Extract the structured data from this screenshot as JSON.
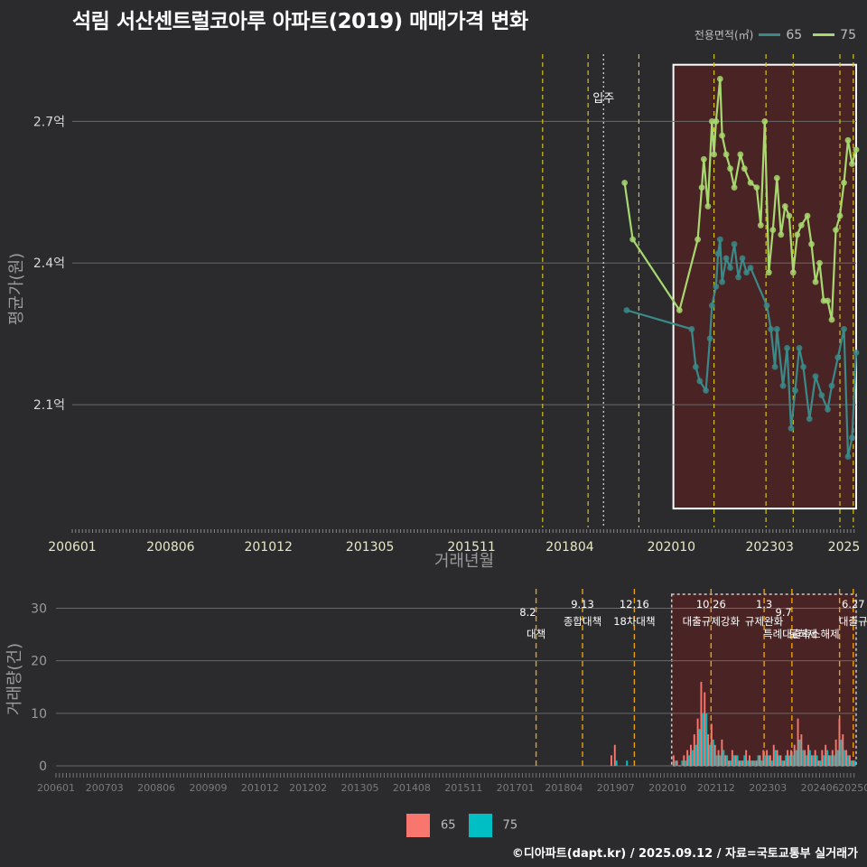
{
  "title": "석림 서산센트럴코아루 아파트(2019) 매매가격 변화",
  "footer": "©디아파트(dapt.kr) / 2025.09.12 / 자료=국토교통부 실거래가",
  "colors": {
    "s65_line": "#3a8a8a",
    "s75_line": "#a8d870",
    "bar65": "#f8766d",
    "bar75": "#00bfc4",
    "grid": "#6a6a6a",
    "highlight_fill": "#4a2424",
    "policy_line": "#d4c21a",
    "policy_line_bottom": "#e8a010"
  },
  "legend_top": {
    "title": "전용면적(㎡)",
    "items": [
      {
        "name": "65",
        "color": "#3a8a8a"
      },
      {
        "name": "75",
        "color": "#a8d870"
      }
    ]
  },
  "legend_bottom": {
    "items": [
      {
        "name": "65",
        "color": "#f8766d"
      },
      {
        "name": "75",
        "color": "#00bfc4"
      }
    ]
  },
  "chart_data": [
    {
      "type": "line",
      "title": "석림 서산센트럴코아루 아파트(2019) 매매가격 변화",
      "xlabel": "거래년월",
      "ylabel": "평균가(원)",
      "ylim": [
        1.84,
        2.85
      ],
      "xlim": [
        2006.0,
        2025.3
      ],
      "y_ticks": [
        {
          "v": 2.1,
          "label": "2.1억"
        },
        {
          "v": 2.4,
          "label": "2.4억"
        },
        {
          "v": 2.7,
          "label": "2.7억"
        }
      ],
      "x_ticks": [
        {
          "v": 2006.0,
          "label": "200601"
        },
        {
          "v": 2008.42,
          "label": "200806"
        },
        {
          "v": 2010.83,
          "label": "201012"
        },
        {
          "v": 2013.33,
          "label": "201305"
        },
        {
          "v": 2015.83,
          "label": "201511"
        },
        {
          "v": 2018.25,
          "label": "201804"
        },
        {
          "v": 2020.75,
          "label": "202010"
        },
        {
          "v": 2023.17,
          "label": "202303"
        },
        {
          "v": 2025.0,
          "label": "2025"
        }
      ],
      "annotations": [
        {
          "x": 2018.6,
          "label": "입주"
        }
      ],
      "policy_lines": [
        2017.58,
        2018.7,
        2019.95,
        2021.8,
        2023.08,
        2023.75,
        2024.9,
        2025.23
      ],
      "move_in_line": 2019.08,
      "highlight": {
        "x0": 2020.8,
        "x1": 2025.3,
        "y0": 1.88,
        "y1": 2.82
      },
      "series": [
        {
          "name": "65",
          "x": [
            2019.65,
            2021.25,
            2021.35,
            2021.45,
            2021.6,
            2021.7,
            2021.75,
            2021.85,
            2021.9,
            2021.95,
            2022.0,
            2022.1,
            2022.2,
            2022.3,
            2022.4,
            2022.5,
            2022.6,
            2022.7,
            2023.1,
            2023.2,
            2023.3,
            2023.35,
            2023.5,
            2023.6,
            2023.7,
            2023.8,
            2023.9,
            2024.0,
            2024.15,
            2024.3,
            2024.45,
            2024.6,
            2024.7,
            2024.85,
            2025.0,
            2025.1,
            2025.2,
            2025.3
          ],
          "y": [
            2.3,
            2.26,
            2.18,
            2.15,
            2.13,
            2.24,
            2.31,
            2.35,
            2.42,
            2.45,
            2.36,
            2.41,
            2.39,
            2.44,
            2.37,
            2.41,
            2.38,
            2.39,
            2.31,
            2.26,
            2.18,
            2.26,
            2.14,
            2.22,
            2.05,
            2.13,
            2.22,
            2.18,
            2.07,
            2.16,
            2.12,
            2.09,
            2.14,
            2.2,
            2.26,
            1.99,
            2.03,
            2.21
          ]
        },
        {
          "name": "75",
          "x": [
            2019.6,
            2019.8,
            2020.95,
            2021.4,
            2021.5,
            2021.55,
            2021.65,
            2021.75,
            2021.8,
            2021.85,
            2021.95,
            2022.0,
            2022.1,
            2022.2,
            2022.3,
            2022.45,
            2022.55,
            2022.7,
            2022.85,
            2022.95,
            2023.05,
            2023.15,
            2023.25,
            2023.35,
            2023.45,
            2023.55,
            2023.65,
            2023.75,
            2023.85,
            2023.95,
            2024.1,
            2024.2,
            2024.3,
            2024.4,
            2024.5,
            2024.6,
            2024.7,
            2024.8,
            2024.9,
            2025.0,
            2025.1,
            2025.2,
            2025.3
          ],
          "y": [
            2.57,
            2.45,
            2.3,
            2.45,
            2.56,
            2.62,
            2.52,
            2.7,
            2.63,
            2.7,
            2.79,
            2.67,
            2.63,
            2.6,
            2.56,
            2.63,
            2.6,
            2.57,
            2.56,
            2.48,
            2.7,
            2.38,
            2.47,
            2.58,
            2.46,
            2.52,
            2.5,
            2.38,
            2.46,
            2.48,
            2.5,
            2.44,
            2.36,
            2.4,
            2.32,
            2.32,
            2.28,
            2.47,
            2.5,
            2.57,
            2.66,
            2.61,
            2.64
          ]
        }
      ]
    },
    {
      "type": "bar",
      "xlabel": "",
      "ylabel": "거래량(건)",
      "ylim": [
        0,
        33
      ],
      "xlim": [
        2006.0,
        2025.3
      ],
      "y_ticks": [
        {
          "v": 0,
          "label": "0"
        },
        {
          "v": 10,
          "label": "10"
        },
        {
          "v": 20,
          "label": "20"
        },
        {
          "v": 30,
          "label": "30"
        }
      ],
      "x_ticks": [
        {
          "v": 2006.0,
          "label": "200601"
        },
        {
          "v": 2007.17,
          "label": "200703"
        },
        {
          "v": 2008.42,
          "label": "200806"
        },
        {
          "v": 2009.67,
          "label": "200909"
        },
        {
          "v": 2010.92,
          "label": "201012"
        },
        {
          "v": 2012.08,
          "label": "201202"
        },
        {
          "v": 2013.33,
          "label": "201305"
        },
        {
          "v": 2014.58,
          "label": "201408"
        },
        {
          "v": 2015.83,
          "label": "201511"
        },
        {
          "v": 2017.08,
          "label": "201701"
        },
        {
          "v": 2018.25,
          "label": "201804"
        },
        {
          "v": 2019.5,
          "label": "201907"
        },
        {
          "v": 2020.75,
          "label": "202010"
        },
        {
          "v": 2021.92,
          "label": "202112"
        },
        {
          "v": 2023.17,
          "label": "202303"
        },
        {
          "v": 2024.42,
          "label": "202406"
        },
        {
          "v": 2025.25,
          "label": "20250"
        }
      ],
      "policy_events": [
        {
          "x": 2017.58,
          "date": "8.2",
          "label": "대책",
          "row": 2
        },
        {
          "x": 2018.7,
          "date": "9.13",
          "label": "종합대책",
          "row": 1
        },
        {
          "x": 2019.95,
          "date": "12.16",
          "label": "18차대책",
          "row": 1
        },
        {
          "x": 2021.8,
          "date": "10.26",
          "label": "대출규제강화",
          "row": 1
        },
        {
          "x": 2023.08,
          "date": "1.3",
          "label": "규제완화",
          "row": 1
        },
        {
          "x": 2023.75,
          "date": "9.7",
          "label": "특례대출축소",
          "row": 2
        },
        {
          "x": 2024.9,
          "date": "",
          "label": "토허제 해제",
          "row": 2
        },
        {
          "x": 2025.23,
          "date": "6.27",
          "label": "대출규",
          "row": 1
        }
      ],
      "highlight": {
        "x0": 2020.85,
        "x1": 2025.3
      },
      "categories": [
        "201906",
        "201907",
        "201910",
        "202012",
        "202101",
        "202102",
        "202103",
        "202104",
        "202105",
        "202106",
        "202107",
        "202108",
        "202109",
        "202110",
        "202111",
        "202112",
        "202201",
        "202202",
        "202203",
        "202204",
        "202205",
        "202206",
        "202207",
        "202208",
        "202209",
        "202210",
        "202211",
        "202212",
        "202301",
        "202302",
        "202303",
        "202304",
        "202305",
        "202306",
        "202307",
        "202308",
        "202309",
        "202310",
        "202311",
        "202312",
        "202401",
        "202402",
        "202403",
        "202404",
        "202405",
        "202406",
        "202407",
        "202408",
        "202409",
        "202410",
        "202411",
        "202412",
        "202501",
        "202502",
        "202503",
        "202504"
      ],
      "series": [
        {
          "name": "65",
          "values": [
            2,
            4,
            0,
            2,
            1,
            0,
            2,
            3,
            4,
            6,
            9,
            16,
            14,
            6,
            8,
            4,
            3,
            5,
            2,
            1,
            3,
            2,
            1,
            1,
            3,
            2,
            1,
            1,
            2,
            3,
            3,
            2,
            4,
            3,
            2,
            1,
            3,
            3,
            4,
            9,
            6,
            3,
            4,
            2,
            3,
            1,
            3,
            4,
            2,
            3,
            5,
            9,
            6,
            3,
            2,
            1
          ]
        },
        {
          "name": "75",
          "values": [
            0,
            1,
            1,
            1,
            0,
            1,
            1,
            2,
            3,
            4,
            7,
            10,
            10,
            4,
            5,
            2,
            2,
            3,
            2,
            1,
            2,
            2,
            1,
            2,
            1,
            1,
            1,
            2,
            1,
            2,
            2,
            1,
            3,
            2,
            1,
            2,
            2,
            2,
            3,
            5,
            3,
            2,
            3,
            2,
            2,
            1,
            2,
            3,
            2,
            2,
            3,
            5,
            3,
            2,
            1,
            1
          ]
        }
      ]
    }
  ]
}
